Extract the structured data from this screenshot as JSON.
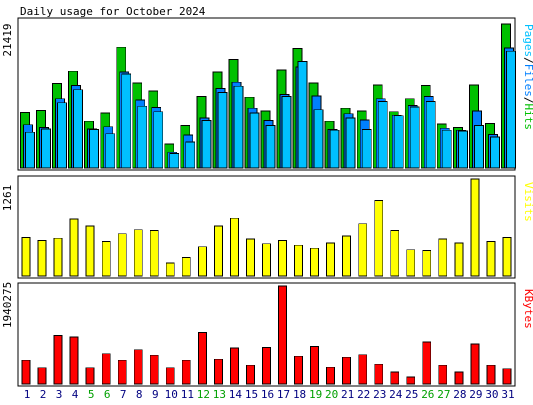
{
  "title": "Daily usage for October 2024",
  "colors": {
    "hits": "#00c000",
    "files": "#0080ff",
    "pages": "#00c0ff",
    "visits": "#ffff00",
    "kbytes": "#ff0000",
    "weekend_label": "#00a000",
    "weekday_label": "#000080",
    "background": "#ffffff",
    "panel_background": "#ffffff",
    "border": "#000000"
  },
  "chart_data": [
    {
      "type": "bar",
      "name": "hits-files-pages",
      "ylabel_max": "21419",
      "ymax": 21419,
      "legend": [
        "Pages",
        "Files",
        "Hits"
      ],
      "categories": [
        "1",
        "2",
        "3",
        "4",
        "5",
        "6",
        "7",
        "8",
        "9",
        "10",
        "11",
        "12",
        "13",
        "14",
        "15",
        "16",
        "17",
        "18",
        "19",
        "20",
        "21",
        "22",
        "23",
        "24",
        "25",
        "26",
        "27",
        "28",
        "29",
        "30",
        "31"
      ],
      "series": [
        {
          "name": "Hits",
          "values": [
            8100,
            8400,
            12300,
            14100,
            6800,
            8000,
            17600,
            12400,
            11200,
            3500,
            6200,
            10400,
            14000,
            15800,
            10300,
            8300,
            14300,
            17400,
            12400,
            6800,
            8700,
            8300,
            12100,
            8200,
            10100,
            12000,
            6400,
            5900,
            12100,
            6500,
            21000
          ]
        },
        {
          "name": "Files",
          "values": [
            6300,
            5900,
            10100,
            12000,
            5700,
            6000,
            14000,
            9900,
            8800,
            2300,
            4800,
            7300,
            11600,
            12500,
            8700,
            6900,
            10700,
            14700,
            10500,
            5600,
            7900,
            7000,
            10100,
            7700,
            9100,
            10400,
            5800,
            5500,
            8300,
            4900,
            17500
          ]
        },
        {
          "name": "Pages",
          "values": [
            5200,
            5700,
            9500,
            11400,
            5600,
            5000,
            13700,
            9000,
            8200,
            2100,
            3800,
            6900,
            11000,
            11900,
            8000,
            6200,
            10400,
            15500,
            8500,
            5500,
            7300,
            5600,
            9700,
            7600,
            8900,
            9700,
            5500,
            5400,
            6200,
            4500,
            17000
          ]
        }
      ],
      "weekend_days": [
        "5",
        "6",
        "12",
        "13",
        "19",
        "20",
        "26",
        "27"
      ]
    },
    {
      "type": "bar",
      "name": "visits",
      "ylabel_max": "1261",
      "ymax": 1261,
      "legend": [
        "Visits"
      ],
      "categories": [
        "1",
        "2",
        "3",
        "4",
        "5",
        "6",
        "7",
        "8",
        "9",
        "10",
        "11",
        "12",
        "13",
        "14",
        "15",
        "16",
        "17",
        "18",
        "19",
        "20",
        "21",
        "22",
        "23",
        "24",
        "25",
        "26",
        "27",
        "28",
        "29",
        "30",
        "31"
      ],
      "series": [
        {
          "name": "Visits",
          "values": [
            500,
            460,
            490,
            740,
            650,
            450,
            550,
            600,
            590,
            170,
            240,
            380,
            650,
            750,
            480,
            420,
            460,
            400,
            360,
            430,
            520,
            680,
            980,
            590,
            340,
            330,
            480,
            430,
            1261,
            450,
            500
          ]
        }
      ]
    },
    {
      "type": "bar",
      "name": "kbytes",
      "ylabel_max": "1940275",
      "ymax": 1940275,
      "legend": [
        "KBytes"
      ],
      "categories": [
        "1",
        "2",
        "3",
        "4",
        "5",
        "6",
        "7",
        "8",
        "9",
        "10",
        "11",
        "12",
        "13",
        "14",
        "15",
        "16",
        "17",
        "18",
        "19",
        "20",
        "21",
        "22",
        "23",
        "24",
        "25",
        "26",
        "27",
        "28",
        "29",
        "30",
        "31"
      ],
      "series": [
        {
          "name": "KBytes",
          "values": [
            470000,
            320000,
            960000,
            930000,
            320000,
            600000,
            470000,
            680000,
            570000,
            320000,
            470000,
            1020000,
            490000,
            710000,
            370000,
            720000,
            1940000,
            550000,
            740000,
            330000,
            530000,
            580000,
            390000,
            240000,
            140000,
            830000,
            370000,
            240000,
            790000,
            370000,
            300000
          ]
        }
      ]
    }
  ]
}
